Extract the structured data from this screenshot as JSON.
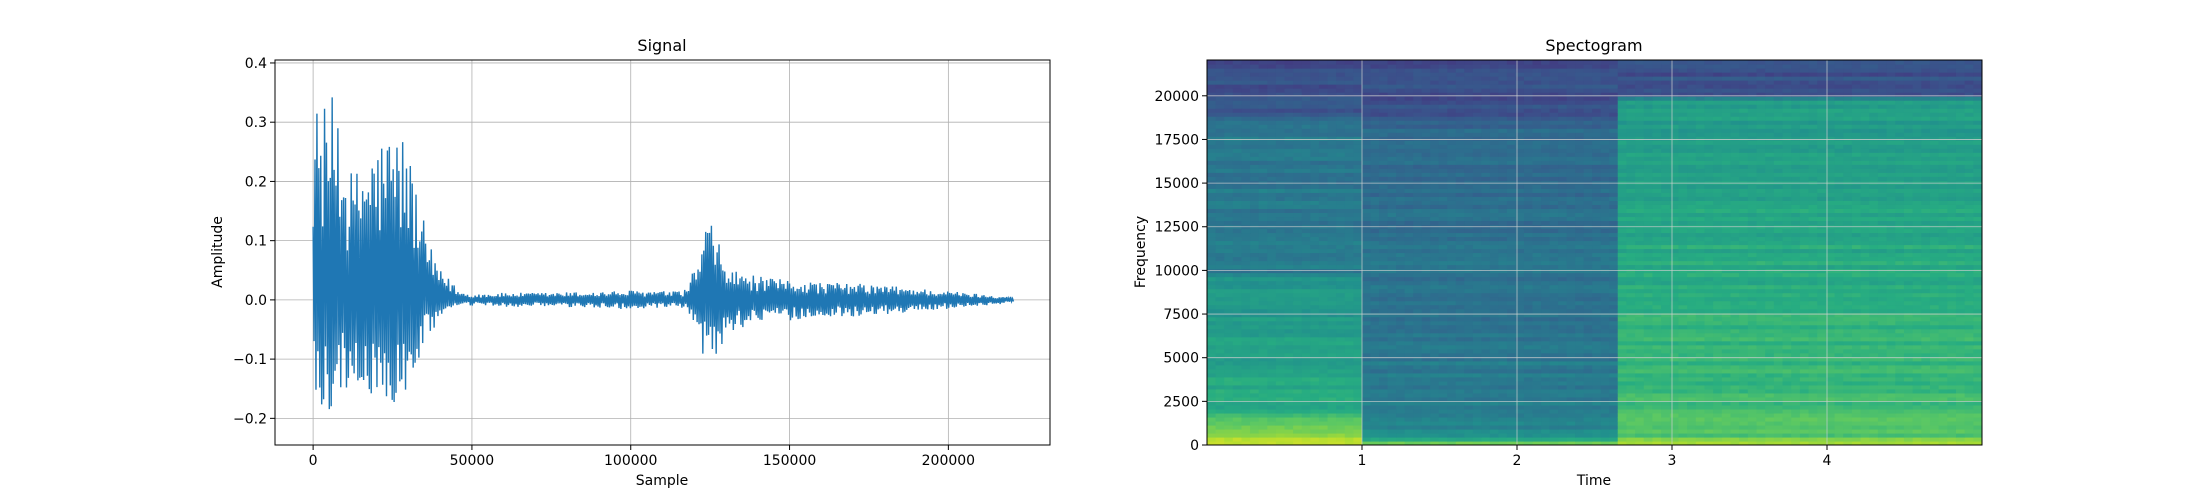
{
  "chart_data": [
    {
      "type": "line",
      "title": "Signal",
      "xlabel": "Sample",
      "ylabel": "Amplitude",
      "xlim": [
        -12000,
        232000
      ],
      "ylim": [
        -0.245,
        0.405
      ],
      "x_ticks": [
        0,
        50000,
        100000,
        150000,
        200000
      ],
      "x_tick_labels": [
        "0",
        "50000",
        "100000",
        "150000",
        "200000"
      ],
      "y_ticks": [
        -0.2,
        -0.1,
        0.0,
        0.1,
        0.2,
        0.3,
        0.4
      ],
      "y_tick_labels": [
        "−0.2",
        "−0.1",
        "0.0",
        "0.1",
        "0.2",
        "0.3",
        "0.4"
      ],
      "grid": true,
      "line_color": "#1f77b4",
      "envelope": {
        "x": [
          0,
          2000,
          5000,
          8000,
          10000,
          13000,
          16000,
          20000,
          24000,
          28000,
          30000,
          32000,
          34000,
          36000,
          38000,
          40000,
          42000,
          44000,
          46000,
          50000,
          60000,
          70000,
          80000,
          90000,
          100000,
          110000,
          115000,
          118000,
          120000,
          122000,
          124000,
          126000,
          128000,
          130000,
          133000,
          136000,
          140000,
          145000,
          150000,
          160000,
          170000,
          180000,
          190000,
          200000,
          210000,
          220500
        ],
        "upper": [
          0.34,
          0.33,
          0.33,
          0.37,
          0.24,
          0.21,
          0.26,
          0.27,
          0.29,
          0.29,
          0.26,
          0.21,
          0.15,
          0.11,
          0.07,
          0.05,
          0.04,
          0.03,
          0.015,
          0.01,
          0.012,
          0.012,
          0.013,
          0.014,
          0.016,
          0.015,
          0.014,
          0.02,
          0.06,
          0.085,
          0.13,
          0.13,
          0.09,
          0.06,
          0.05,
          0.045,
          0.04,
          0.035,
          0.035,
          0.03,
          0.028,
          0.025,
          0.02,
          0.015,
          0.01,
          0.005
        ],
        "lower": [
          -0.19,
          -0.21,
          -0.19,
          -0.17,
          -0.15,
          -0.16,
          -0.16,
          -0.17,
          -0.18,
          -0.185,
          -0.17,
          -0.13,
          -0.09,
          -0.06,
          -0.05,
          -0.03,
          -0.02,
          -0.015,
          -0.01,
          -0.01,
          -0.012,
          -0.012,
          -0.013,
          -0.014,
          -0.016,
          -0.015,
          -0.014,
          -0.02,
          -0.045,
          -0.085,
          -0.11,
          -0.13,
          -0.09,
          -0.06,
          -0.05,
          -0.045,
          -0.04,
          -0.035,
          -0.035,
          -0.03,
          -0.028,
          -0.025,
          -0.02,
          -0.015,
          -0.01,
          -0.005
        ]
      }
    },
    {
      "type": "heatmap",
      "title": "Spectogram",
      "xlabel": "Time",
      "ylabel": "Frequency",
      "xlim": [
        0,
        5.0
      ],
      "ylim": [
        0,
        22050
      ],
      "x_ticks": [
        1,
        2,
        3,
        4
      ],
      "x_tick_labels": [
        "1",
        "2",
        "3",
        "4"
      ],
      "y_ticks": [
        0,
        2500,
        5000,
        7500,
        10000,
        12500,
        15000,
        17500,
        20000
      ],
      "y_tick_labels": [
        "0",
        "2500",
        "5000",
        "7500",
        "10000",
        "12500",
        "15000",
        "17500",
        "20000"
      ],
      "grid": true,
      "colormap": "viridis",
      "segments": [
        {
          "t_start": 0.0,
          "t_end": 1.0,
          "energy_profile": [
            [
              0,
              0.92
            ],
            [
              600,
              0.86
            ],
            [
              2000,
              0.62
            ],
            [
              5000,
              0.58
            ],
            [
              9500,
              0.52
            ],
            [
              10000,
              0.42
            ],
            [
              17500,
              0.4
            ],
            [
              18500,
              0.38
            ],
            [
              19000,
              0.26
            ],
            [
              22050,
              0.24
            ]
          ]
        },
        {
          "t_start": 1.0,
          "t_end": 2.65,
          "energy_profile": [
            [
              0,
              0.84
            ],
            [
              600,
              0.48
            ],
            [
              3000,
              0.42
            ],
            [
              10000,
              0.38
            ],
            [
              18000,
              0.36
            ],
            [
              19000,
              0.26
            ],
            [
              22050,
              0.23
            ]
          ]
        },
        {
          "t_start": 2.65,
          "t_end": 5.0,
          "energy_profile": [
            [
              0,
              0.86
            ],
            [
              600,
              0.72
            ],
            [
              5000,
              0.66
            ],
            [
              12500,
              0.6
            ],
            [
              19800,
              0.55
            ],
            [
              20000,
              0.27
            ],
            [
              22050,
              0.24
            ]
          ]
        }
      ]
    }
  ]
}
